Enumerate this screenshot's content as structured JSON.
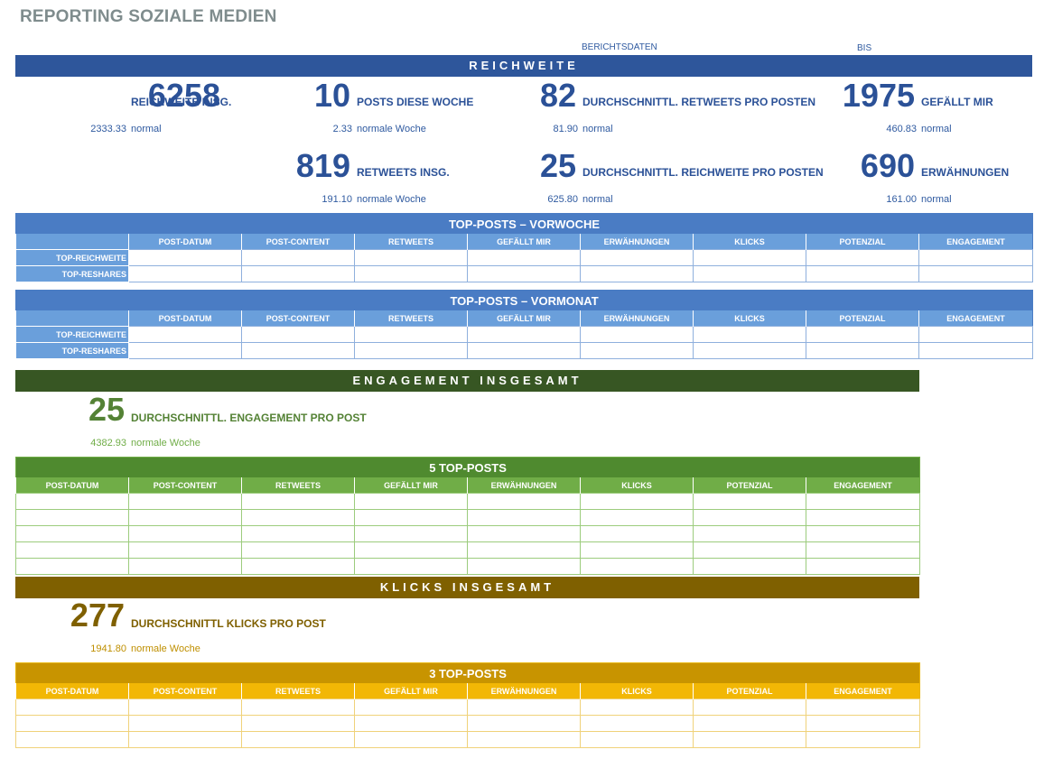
{
  "title": "REPORTING SOZIALE MEDIEN",
  "dates": {
    "label": "BERICHTSDATEN",
    "bis": "BIS"
  },
  "reach": {
    "banner": "REICHWEITE",
    "kpis": [
      {
        "value": "6258",
        "label": "REICHWEITE INSG.",
        "sub_value": "2333.33",
        "sub_label": "normal"
      },
      {
        "value": "10",
        "label": "POSTS DIESE WOCHE",
        "sub_value": "2.33",
        "sub_label": "normale Woche"
      },
      {
        "value": "82",
        "label": "DURCHSCHNITTL. RETWEETS PRO POSTEN",
        "sub_value": "81.90",
        "sub_label": "normal"
      },
      {
        "value": "1975",
        "label": "GEFÄLLT MIR",
        "sub_value": "460.83",
        "sub_label": "normal"
      },
      {
        "value": "819",
        "label": "RETWEETS INSG.",
        "sub_value": "191.10",
        "sub_label": "normale Woche"
      },
      {
        "value": "25",
        "label": "DURCHSCHNITTL. REICHWEITE PRO POSTEN",
        "sub_value": "625.80",
        "sub_label": "normal"
      },
      {
        "value": "690",
        "label": "ERWÄHNUNGEN",
        "sub_value": "161.00",
        "sub_label": "normal"
      }
    ]
  },
  "columns": [
    "POST-DATUM",
    "POST-CONTENT",
    "RETWEETS",
    "GEFÄLLT MIR",
    "ERWÄHNUNGEN",
    "KLICKS",
    "POTENZIAL",
    "ENGAGEMENT"
  ],
  "top_week": {
    "title": "TOP-POSTS – VORWOCHE",
    "rows": [
      "TOP-REICHWEITE",
      "TOP-RESHARES"
    ]
  },
  "top_month": {
    "title": "TOP-POSTS – VORMONAT",
    "rows": [
      "TOP-REICHWEITE",
      "TOP-RESHARES"
    ]
  },
  "engagement": {
    "banner": "ENGAGEMENT INSGESAMT",
    "value": "25",
    "label": "DURCHSCHNITTL. ENGAGEMENT PRO POST",
    "sub_value": "4382.93",
    "sub_label": "normale Woche",
    "table_title": "5 TOP-POSTS"
  },
  "clicks": {
    "banner": "KLICKS INSGESAMT",
    "value": "277",
    "label": "DURCHSCHNITTL KLICKS PRO POST",
    "sub_value": "1941.80",
    "sub_label": "normale Woche",
    "table_title": "3 TOP-POSTS"
  },
  "colors": {
    "blue_banner": "#2e569b",
    "blue_table": "#4a7cc4",
    "green_banner": "#375623",
    "green_text": "#548235",
    "gold_banner": "#7f6000",
    "gold_text": "#bf8f00"
  }
}
